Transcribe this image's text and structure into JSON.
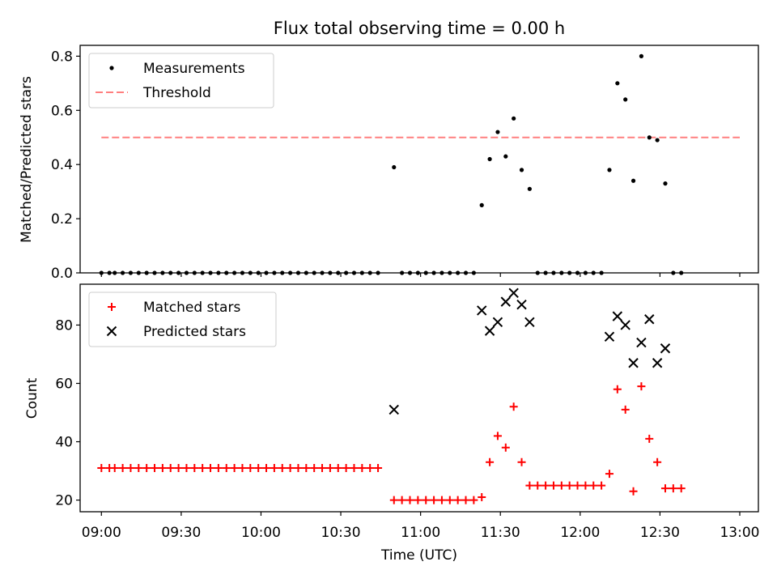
{
  "chart_data": [
    {
      "type": "scatter",
      "title": "Flux total observing time = 0.00 h",
      "xlabel": "",
      "ylabel": "Matched/Predicted stars",
      "ylim": [
        0,
        0.84
      ],
      "yticks": [
        0.0,
        0.2,
        0.4,
        0.6,
        0.8
      ],
      "ytick_labels": [
        "0.0",
        "0.2",
        "0.4",
        "0.6",
        "0.8"
      ],
      "xlim": [
        "08:52",
        "13:07"
      ],
      "xticks": [
        "09:00",
        "09:30",
        "10:00",
        "10:30",
        "11:00",
        "11:30",
        "12:00",
        "12:30",
        "13:00"
      ],
      "legend_position": "top-left",
      "legend": [
        "Measurements",
        "Threshold"
      ],
      "threshold": {
        "name": "Threshold",
        "y": 0.5,
        "x_range": [
          "09:00",
          "13:00"
        ],
        "color": "#ff7f7f",
        "style": "dashed"
      },
      "series": [
        {
          "name": "Measurements",
          "marker": "dot",
          "color": "#000000",
          "points": [
            [
              "09:00",
              0
            ],
            [
              "09:03",
              0
            ],
            [
              "09:05",
              0
            ],
            [
              "09:08",
              0
            ],
            [
              "09:11",
              0
            ],
            [
              "09:14",
              0
            ],
            [
              "09:17",
              0
            ],
            [
              "09:20",
              0
            ],
            [
              "09:23",
              0
            ],
            [
              "09:26",
              0
            ],
            [
              "09:29",
              0
            ],
            [
              "09:32",
              0
            ],
            [
              "09:35",
              0
            ],
            [
              "09:38",
              0
            ],
            [
              "09:41",
              0
            ],
            [
              "09:44",
              0
            ],
            [
              "09:47",
              0
            ],
            [
              "09:50",
              0
            ],
            [
              "09:53",
              0
            ],
            [
              "09:56",
              0
            ],
            [
              "09:59",
              0
            ],
            [
              "10:02",
              0
            ],
            [
              "10:05",
              0
            ],
            [
              "10:08",
              0
            ],
            [
              "10:11",
              0
            ],
            [
              "10:14",
              0
            ],
            [
              "10:17",
              0
            ],
            [
              "10:20",
              0
            ],
            [
              "10:23",
              0
            ],
            [
              "10:26",
              0
            ],
            [
              "10:29",
              0
            ],
            [
              "10:32",
              0
            ],
            [
              "10:35",
              0
            ],
            [
              "10:38",
              0
            ],
            [
              "10:41",
              0
            ],
            [
              "10:44",
              0
            ],
            [
              "10:50",
              0.39
            ],
            [
              "10:53",
              0
            ],
            [
              "10:56",
              0
            ],
            [
              "10:59",
              0
            ],
            [
              "11:02",
              0
            ],
            [
              "11:05",
              0
            ],
            [
              "11:08",
              0
            ],
            [
              "11:11",
              0
            ],
            [
              "11:14",
              0
            ],
            [
              "11:17",
              0
            ],
            [
              "11:20",
              0
            ],
            [
              "11:23",
              0.25
            ],
            [
              "11:26",
              0.42
            ],
            [
              "11:29",
              0.52
            ],
            [
              "11:32",
              0.43
            ],
            [
              "11:35",
              0.57
            ],
            [
              "11:38",
              0.38
            ],
            [
              "11:41",
              0.31
            ],
            [
              "11:44",
              0
            ],
            [
              "11:47",
              0
            ],
            [
              "11:50",
              0
            ],
            [
              "11:53",
              0
            ],
            [
              "11:56",
              0
            ],
            [
              "11:59",
              0
            ],
            [
              "12:02",
              0
            ],
            [
              "12:05",
              0
            ],
            [
              "12:08",
              0
            ],
            [
              "12:11",
              0.38
            ],
            [
              "12:14",
              0.7
            ],
            [
              "12:17",
              0.64
            ],
            [
              "12:20",
              0.34
            ],
            [
              "12:23",
              0.8
            ],
            [
              "12:26",
              0.5
            ],
            [
              "12:29",
              0.49
            ],
            [
              "12:32",
              0.33
            ],
            [
              "12:35",
              0
            ],
            [
              "12:38",
              0
            ]
          ]
        }
      ]
    },
    {
      "type": "scatter",
      "title": "",
      "xlabel": "Time (UTC)",
      "ylabel": "Count",
      "ylim": [
        16,
        94
      ],
      "yticks": [
        20,
        40,
        60,
        80
      ],
      "ytick_labels": [
        "20",
        "40",
        "60",
        "80"
      ],
      "xlim": [
        "08:52",
        "13:07"
      ],
      "xticks": [
        "09:00",
        "09:30",
        "10:00",
        "10:30",
        "11:00",
        "11:30",
        "12:00",
        "12:30",
        "13:00"
      ],
      "xtick_labels": [
        "09:00",
        "09:30",
        "10:00",
        "10:30",
        "11:00",
        "11:30",
        "12:00",
        "12:30",
        "13:00"
      ],
      "legend_position": "top-left",
      "legend": [
        "Matched stars",
        "Predicted stars"
      ],
      "series": [
        {
          "name": "Matched stars",
          "marker": "plus",
          "color": "#ff0000",
          "points": [
            [
              "09:00",
              31
            ],
            [
              "09:03",
              31
            ],
            [
              "09:05",
              31
            ],
            [
              "09:08",
              31
            ],
            [
              "09:11",
              31
            ],
            [
              "09:14",
              31
            ],
            [
              "09:17",
              31
            ],
            [
              "09:20",
              31
            ],
            [
              "09:23",
              31
            ],
            [
              "09:26",
              31
            ],
            [
              "09:29",
              31
            ],
            [
              "09:32",
              31
            ],
            [
              "09:35",
              31
            ],
            [
              "09:38",
              31
            ],
            [
              "09:41",
              31
            ],
            [
              "09:44",
              31
            ],
            [
              "09:47",
              31
            ],
            [
              "09:50",
              31
            ],
            [
              "09:53",
              31
            ],
            [
              "09:56",
              31
            ],
            [
              "09:59",
              31
            ],
            [
              "10:02",
              31
            ],
            [
              "10:05",
              31
            ],
            [
              "10:08",
              31
            ],
            [
              "10:11",
              31
            ],
            [
              "10:14",
              31
            ],
            [
              "10:17",
              31
            ],
            [
              "10:20",
              31
            ],
            [
              "10:23",
              31
            ],
            [
              "10:26",
              31
            ],
            [
              "10:29",
              31
            ],
            [
              "10:32",
              31
            ],
            [
              "10:35",
              31
            ],
            [
              "10:38",
              31
            ],
            [
              "10:41",
              31
            ],
            [
              "10:44",
              31
            ],
            [
              "10:50",
              20
            ],
            [
              "10:53",
              20
            ],
            [
              "10:56",
              20
            ],
            [
              "10:59",
              20
            ],
            [
              "11:02",
              20
            ],
            [
              "11:05",
              20
            ],
            [
              "11:08",
              20
            ],
            [
              "11:11",
              20
            ],
            [
              "11:14",
              20
            ],
            [
              "11:17",
              20
            ],
            [
              "11:20",
              20
            ],
            [
              "11:23",
              21
            ],
            [
              "11:26",
              33
            ],
            [
              "11:29",
              42
            ],
            [
              "11:32",
              38
            ],
            [
              "11:35",
              52
            ],
            [
              "11:38",
              33
            ],
            [
              "11:41",
              25
            ],
            [
              "11:44",
              25
            ],
            [
              "11:47",
              25
            ],
            [
              "11:50",
              25
            ],
            [
              "11:53",
              25
            ],
            [
              "11:56",
              25
            ],
            [
              "11:59",
              25
            ],
            [
              "12:02",
              25
            ],
            [
              "12:05",
              25
            ],
            [
              "12:08",
              25
            ],
            [
              "12:11",
              29
            ],
            [
              "12:14",
              58
            ],
            [
              "12:17",
              51
            ],
            [
              "12:20",
              23
            ],
            [
              "12:23",
              59
            ],
            [
              "12:26",
              41
            ],
            [
              "12:29",
              33
            ],
            [
              "12:32",
              24
            ],
            [
              "12:35",
              24
            ],
            [
              "12:38",
              24
            ]
          ]
        },
        {
          "name": "Predicted stars",
          "marker": "x",
          "color": "#000000",
          "points": [
            [
              "10:50",
              51
            ],
            [
              "11:23",
              85
            ],
            [
              "11:26",
              78
            ],
            [
              "11:29",
              81
            ],
            [
              "11:32",
              88
            ],
            [
              "11:35",
              91
            ],
            [
              "11:38",
              87
            ],
            [
              "11:41",
              81
            ],
            [
              "12:11",
              76
            ],
            [
              "12:14",
              83
            ],
            [
              "12:17",
              80
            ],
            [
              "12:20",
              67
            ],
            [
              "12:23",
              74
            ],
            [
              "12:26",
              82
            ],
            [
              "12:29",
              67
            ],
            [
              "12:32",
              72
            ]
          ]
        }
      ]
    }
  ]
}
